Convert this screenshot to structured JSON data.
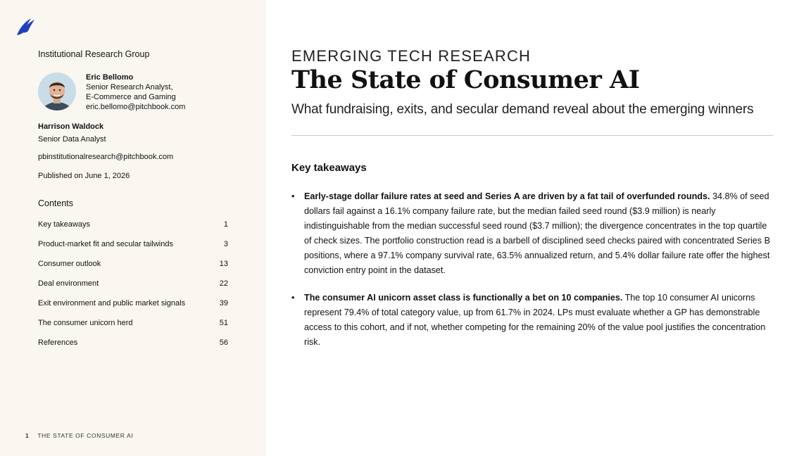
{
  "sidebar": {
    "org_title": "Institutional Research Group",
    "author1": {
      "name": "Eric Bellomo",
      "role_line1": "Senior Research Analyst,",
      "role_line2": "E-Commerce and Gaming",
      "email": "eric.bellomo@pitchbook.com"
    },
    "author2": {
      "name": "Harrison Waldock",
      "role": "Senior Data Analyst"
    },
    "contact_email": "pbinstitutionalresearch@pitchbook.com",
    "published": "Published on June 1, 2026",
    "contents_title": "Contents",
    "toc": [
      {
        "label": "Key takeaways",
        "page": "1"
      },
      {
        "label": "Product-market fit and secular tailwinds",
        "page": "3"
      },
      {
        "label": "Consumer outlook",
        "page": "13"
      },
      {
        "label": "Deal environment",
        "page": "22"
      },
      {
        "label": "Exit environment and public market signals",
        "page": "39"
      },
      {
        "label": "The consumer unicorn herd",
        "page": "51"
      },
      {
        "label": "References",
        "page": "56"
      }
    ],
    "footer": {
      "page_number": "1",
      "running_title": "THE STATE OF CONSUMER AI"
    }
  },
  "main": {
    "kicker": "EMERGING TECH RESEARCH",
    "title": "The State of Consumer AI",
    "subtitle": "What fundraising, exits, and secular demand reveal about the emerging winners",
    "section_title": "Key takeaways",
    "takeaways": [
      {
        "bullet": "•",
        "lead": "Early-stage dollar failure rates at seed and Series A are driven by a fat tail of overfunded rounds.",
        "body": " 34.8% of seed dollars fail against a 16.1% company failure rate, but the median failed seed round ($3.9 million) is nearly indistinguishable from the median successful seed round ($3.7 million); the divergence concentrates in the top quartile of check sizes. The portfolio construction read is a barbell of disciplined seed checks paired with concentrated Series B positions, where a 97.1% company survival rate, 63.5% annualized return, and 5.4% dollar failure rate offer the highest conviction entry point in the dataset."
      },
      {
        "bullet": "•",
        "lead": "The consumer AI unicorn asset class is functionally a bet on 10 companies.",
        "body": " The top 10 consumer AI unicorns represent 79.4% of total category value, up from 61.7% in 2024. LPs must evaluate whether a GP has demonstrable access to this cohort, and if not, whether competing for the remaining 20% of the value pool justifies the concentration risk."
      }
    ]
  },
  "colors": {
    "sidebar_bg": "#faf7f1",
    "logo_blue": "#1f3fbf",
    "rule": "#c8c8c8"
  }
}
